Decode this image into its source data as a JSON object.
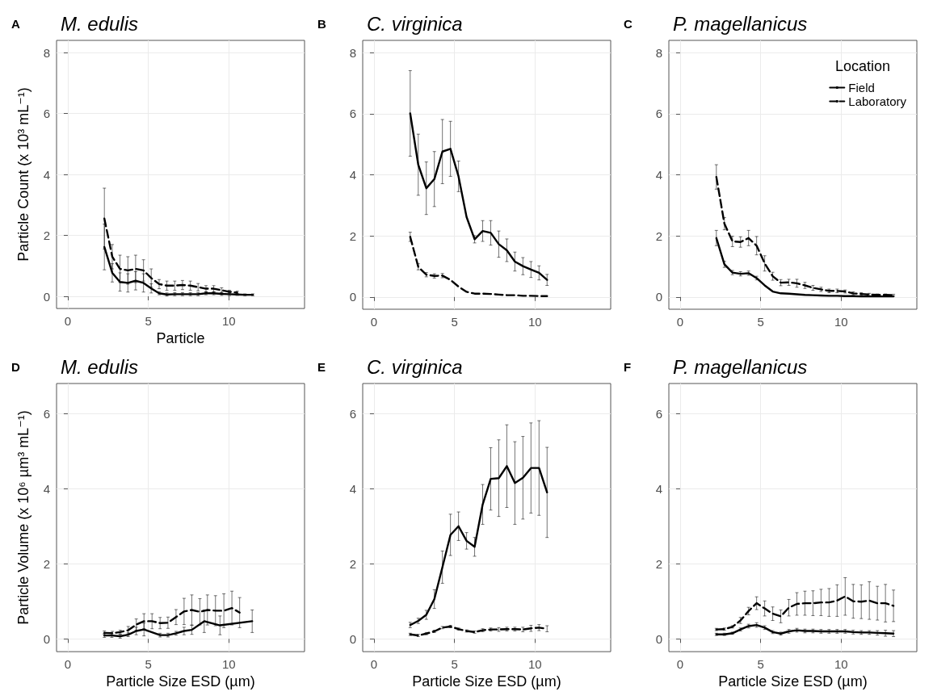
{
  "chart_data": [
    {
      "type": "line",
      "title": "M. edulis",
      "annotations": [
        "A"
      ],
      "xlabel": "Particle",
      "ylabel": "Particle Count (x 10³ mL⁻¹)",
      "xlim": [
        -0.7,
        14.7
      ],
      "xticks": [
        0,
        5,
        10
      ],
      "ylim": [
        -0.4,
        8.4
      ],
      "yticks": [
        0,
        2,
        4,
        6,
        8
      ],
      "grid": true,
      "series": [
        {
          "color": "#000000",
          "line_style": "solid",
          "x": [
            2.27,
            2.76,
            3.24,
            3.73,
            4.21,
            4.7,
            5.18,
            5.67,
            6.15,
            6.64,
            7.12,
            7.61,
            8.09,
            8.58,
            9.06,
            9.55,
            10.03,
            10.52,
            11.0,
            11.49
          ],
          "values": [
            1.62,
            0.77,
            0.47,
            0.44,
            0.51,
            0.44,
            0.26,
            0.1,
            0.06,
            0.07,
            0.07,
            0.07,
            0.07,
            0.1,
            0.1,
            0.08,
            0.07,
            0.06,
            0.05,
            0.05
          ],
          "errors": [
            0.75,
            0.3,
            0.3,
            0.3,
            0.3,
            0.3,
            0.15,
            0.05,
            0.05,
            0.05,
            0.05,
            0.05,
            0.05,
            0.05,
            0.05,
            0.05,
            0.05,
            0.03,
            0.03,
            0.03
          ]
        },
        {
          "color": "#000000",
          "line_style": "dashed",
          "x": [
            2.27,
            2.76,
            3.24,
            3.73,
            4.21,
            4.7,
            5.18,
            5.67,
            6.15,
            6.64,
            7.12,
            7.61,
            8.09,
            8.58,
            9.06,
            9.55,
            10.03,
            10.52
          ],
          "values": [
            2.55,
            1.3,
            0.9,
            0.85,
            0.9,
            0.85,
            0.6,
            0.4,
            0.35,
            0.35,
            0.37,
            0.35,
            0.3,
            0.25,
            0.25,
            0.2,
            0.15,
            0.12
          ],
          "errors": [
            1.0,
            0.4,
            0.45,
            0.45,
            0.45,
            0.35,
            0.3,
            0.15,
            0.15,
            0.15,
            0.15,
            0.15,
            0.12,
            0.1,
            0.1,
            0.08,
            0.05,
            0.05
          ]
        }
      ]
    },
    {
      "type": "line",
      "title": "C. virginica",
      "annotations": [
        "B"
      ],
      "xlim": [
        -0.7,
        14.7
      ],
      "xticks": [
        0,
        5,
        10
      ],
      "ylim": [
        -0.4,
        8.4
      ],
      "yticks": [
        0,
        2,
        4,
        6,
        8
      ],
      "grid": true,
      "series": [
        {
          "color": "#000000",
          "line_style": "solid",
          "x": [
            2.25,
            2.75,
            3.25,
            3.75,
            4.25,
            4.75,
            5.25,
            5.75,
            6.25,
            6.75,
            7.25,
            7.75,
            8.25,
            8.75,
            9.25,
            9.75,
            10.25,
            10.75
          ],
          "values": [
            6.01,
            4.33,
            3.56,
            3.86,
            4.76,
            4.85,
            3.95,
            2.62,
            1.89,
            2.16,
            2.1,
            1.73,
            1.53,
            1.16,
            1.01,
            0.9,
            0.79,
            0.56
          ],
          "errors": [
            1.4,
            1.0,
            0.86,
            0.9,
            1.05,
            0.9,
            0.5,
            null,
            0.12,
            0.34,
            0.4,
            0.43,
            0.37,
            0.31,
            0.28,
            0.26,
            0.23,
            0.18
          ]
        },
        {
          "color": "#000000",
          "line_style": "dashed",
          "x": [
            2.25,
            2.75,
            3.25,
            3.75,
            4.25,
            4.75,
            5.25,
            5.75,
            6.25,
            6.75,
            7.25,
            7.75,
            8.25,
            8.75,
            9.25,
            9.75,
            10.25,
            10.75
          ],
          "values": [
            1.97,
            0.99,
            0.73,
            0.69,
            0.7,
            0.56,
            0.34,
            0.17,
            0.11,
            0.11,
            0.1,
            0.08,
            0.06,
            0.06,
            0.04,
            0.04,
            0.03,
            0.03
          ],
          "errors": [
            0.15,
            0.1,
            0.07,
            0.07,
            0.07,
            null,
            null,
            null,
            null,
            null,
            null,
            null,
            null,
            null,
            null,
            null,
            null,
            null
          ]
        }
      ]
    },
    {
      "type": "line",
      "title": "P. magellanicus",
      "annotations": [
        "C"
      ],
      "xlim": [
        -0.7,
        14.7
      ],
      "xticks": [
        0,
        5,
        10
      ],
      "ylim": [
        -0.4,
        8.4
      ],
      "yticks": [
        0,
        2,
        4,
        6,
        8
      ],
      "grid": true,
      "legend": "top right",
      "legend_title": "Location",
      "series": [
        {
          "name": "Field",
          "color": "#000000",
          "line_style": "solid",
          "x": [
            2.25,
            2.75,
            3.25,
            3.75,
            4.25,
            4.75,
            5.25,
            5.75,
            6.25,
            6.75,
            7.25,
            7.75,
            8.25,
            8.75,
            9.25,
            9.75,
            10.25,
            10.75,
            11.25,
            11.75,
            12.25,
            12.75,
            13.25
          ],
          "values": [
            1.93,
            1.07,
            0.8,
            0.76,
            0.78,
            0.62,
            0.38,
            0.18,
            0.12,
            0.11,
            0.09,
            0.07,
            0.06,
            0.05,
            0.04,
            0.04,
            0.03,
            0.03,
            0.02,
            0.02,
            0.02,
            0.02,
            0.02
          ],
          "errors": [
            0.25,
            0.1,
            0.07,
            0.07,
            0.07,
            0.06,
            null,
            null,
            null,
            null,
            null,
            null,
            null,
            null,
            null,
            null,
            null,
            null,
            null,
            null,
            null,
            null,
            null
          ]
        },
        {
          "name": "Laboratory",
          "color": "#000000",
          "line_style": "dashed",
          "x": [
            2.25,
            2.75,
            3.25,
            3.75,
            4.25,
            4.75,
            5.25,
            5.75,
            6.25,
            6.75,
            7.25,
            7.75,
            8.25,
            8.75,
            9.25,
            9.75,
            10.25,
            10.75,
            11.25,
            11.75,
            12.25,
            12.75,
            13.25
          ],
          "values": [
            3.93,
            2.4,
            1.82,
            1.8,
            1.93,
            1.68,
            1.1,
            0.68,
            0.47,
            0.48,
            0.45,
            0.38,
            0.3,
            0.25,
            0.2,
            0.2,
            0.18,
            0.12,
            0.1,
            0.08,
            0.07,
            0.07,
            0.06
          ],
          "errors": [
            0.4,
            0.2,
            0.17,
            0.17,
            0.25,
            0.3,
            0.25,
            0.13,
            0.1,
            0.1,
            0.13,
            0.1,
            0.08,
            0.07,
            0.06,
            0.06,
            0.05,
            0.05,
            0.04,
            0.04,
            0.03,
            0.03,
            0.03
          ]
        }
      ]
    },
    {
      "type": "line",
      "title": "M. edulis",
      "annotations": [
        "D"
      ],
      "xlabel": "Particle Size ESD (µm)",
      "ylabel": "Particle Volume (x 10⁶ µm³ mL⁻¹)",
      "xlim": [
        -0.7,
        14.7
      ],
      "xticks": [
        0,
        5,
        10
      ],
      "ylim": [
        -0.34,
        6.8
      ],
      "yticks": [
        0,
        2,
        4,
        6
      ],
      "grid": true,
      "series": [
        {
          "color": "#000000",
          "line_style": "solid",
          "x": [
            2.27,
            2.73,
            3.25,
            3.75,
            4.25,
            4.73,
            5.73,
            6.22,
            6.72,
            7.22,
            7.7,
            8.47,
            9.45,
            11.45
          ],
          "values": [
            0.09,
            0.09,
            0.07,
            0.11,
            0.21,
            0.25,
            0.1,
            0.1,
            0.15,
            0.21,
            0.24,
            0.47,
            0.36,
            0.47
          ],
          "errors": [
            0.05,
            0.05,
            0.05,
            0.05,
            0.1,
            0.17,
            0.05,
            0.05,
            0.05,
            0.1,
            0.12,
            0.3,
            0.25,
            0.3
          ]
        },
        {
          "color": "#000000",
          "line_style": "dashed",
          "x": [
            2.27,
            2.77,
            3.25,
            3.75,
            4.25,
            4.73,
            5.23,
            5.73,
            6.22,
            6.72,
            7.22,
            7.7,
            8.2,
            8.67,
            9.17,
            9.69,
            10.19,
            10.67
          ],
          "values": [
            0.16,
            0.15,
            0.18,
            0.23,
            0.38,
            0.47,
            0.47,
            0.42,
            0.43,
            0.58,
            0.73,
            0.77,
            0.72,
            0.77,
            0.75,
            0.75,
            0.82,
            0.7
          ],
          "errors": [
            0.05,
            0.05,
            0.05,
            0.1,
            0.15,
            0.2,
            0.2,
            0.15,
            0.15,
            0.2,
            0.35,
            0.4,
            0.35,
            0.4,
            0.4,
            0.45,
            0.45,
            0.4
          ]
        }
      ]
    },
    {
      "type": "line",
      "title": "C. virginica",
      "annotations": [
        "E"
      ],
      "xlabel": "Particle Size ESD (µm)",
      "xlim": [
        -0.7,
        14.7
      ],
      "xticks": [
        0,
        5,
        10
      ],
      "ylim": [
        -0.34,
        6.8
      ],
      "yticks": [
        0,
        2,
        4,
        6
      ],
      "grid": true,
      "series": [
        {
          "color": "#000000",
          "line_style": "solid",
          "x": [
            2.25,
            2.75,
            3.25,
            3.75,
            4.25,
            4.75,
            5.25,
            5.75,
            6.25,
            6.75,
            7.25,
            7.75,
            8.25,
            8.75,
            9.25,
            9.75,
            10.25,
            10.75
          ],
          "values": [
            0.37,
            0.48,
            0.64,
            1.06,
            1.91,
            2.77,
            3.0,
            2.61,
            2.45,
            3.58,
            4.26,
            4.28,
            4.6,
            4.15,
            4.29,
            4.55,
            4.55,
            3.9
          ],
          "errors": [
            0.07,
            0.07,
            0.12,
            0.25,
            0.43,
            0.55,
            0.38,
            0.22,
            0.25,
            0.53,
            0.83,
            1.02,
            1.1,
            1.1,
            1.1,
            1.2,
            1.26,
            1.2
          ]
        },
        {
          "color": "#000000",
          "line_style": "dashed",
          "x": [
            2.25,
            2.75,
            3.25,
            3.75,
            4.25,
            4.75,
            5.25,
            5.75,
            6.25,
            6.75,
            7.25,
            7.75,
            8.25,
            8.75,
            9.25,
            9.75,
            10.25,
            10.75
          ],
          "values": [
            0.12,
            0.09,
            0.14,
            0.2,
            0.3,
            0.33,
            0.26,
            0.21,
            0.18,
            0.23,
            0.25,
            0.25,
            0.26,
            0.26,
            0.25,
            0.28,
            0.3,
            0.27
          ],
          "errors": [
            0.03,
            0.03,
            0.03,
            0.03,
            0.03,
            0.03,
            0.03,
            0.03,
            0.03,
            0.04,
            0.04,
            0.05,
            0.05,
            0.05,
            0.06,
            0.08,
            0.08,
            0.08
          ]
        }
      ]
    },
    {
      "type": "line",
      "title": "P. magellanicus",
      "annotations": [
        "F"
      ],
      "xlabel": "Particle Size ESD (µm)",
      "xlim": [
        -0.7,
        14.7
      ],
      "xticks": [
        0,
        5,
        10
      ],
      "ylim": [
        -0.34,
        6.8
      ],
      "yticks": [
        0,
        2,
        4,
        6
      ],
      "grid": true,
      "series": [
        {
          "color": "#000000",
          "line_style": "solid",
          "x": [
            2.25,
            2.75,
            3.25,
            3.75,
            4.25,
            4.75,
            5.25,
            5.75,
            6.25,
            6.75,
            7.25,
            7.75,
            8.25,
            8.75,
            9.25,
            9.75,
            10.25,
            10.75,
            11.25,
            11.75,
            12.25,
            12.75,
            13.25
          ],
          "values": [
            0.12,
            0.12,
            0.15,
            0.25,
            0.34,
            0.37,
            0.3,
            0.18,
            0.14,
            0.2,
            0.23,
            0.21,
            0.21,
            0.2,
            0.2,
            0.2,
            0.2,
            0.18,
            0.17,
            0.17,
            0.16,
            0.15,
            0.14
          ],
          "errors": [
            0.03,
            0.03,
            0.03,
            0.04,
            0.05,
            0.06,
            0.05,
            0.04,
            0.04,
            0.05,
            0.05,
            0.05,
            0.05,
            0.05,
            0.05,
            0.05,
            0.05,
            0.05,
            0.05,
            0.05,
            0.06,
            0.08,
            0.08
          ]
        },
        {
          "color": "#000000",
          "line_style": "dashed",
          "x": [
            2.25,
            2.75,
            3.25,
            3.75,
            4.25,
            4.75,
            5.25,
            5.75,
            6.25,
            6.75,
            7.25,
            7.75,
            8.25,
            8.75,
            9.25,
            9.75,
            10.25,
            10.75,
            11.25,
            11.75,
            12.25,
            12.75,
            13.25
          ],
          "values": [
            0.25,
            0.26,
            0.32,
            0.49,
            0.74,
            0.95,
            0.81,
            0.67,
            0.6,
            0.83,
            0.93,
            0.95,
            0.95,
            0.97,
            0.97,
            1.02,
            1.13,
            1.0,
            0.99,
            1.02,
            0.95,
            0.95,
            0.88
          ],
          "errors": [
            0.03,
            0.03,
            0.03,
            0.08,
            0.1,
            0.17,
            0.2,
            0.18,
            0.17,
            0.22,
            0.3,
            0.32,
            0.33,
            0.35,
            0.37,
            0.42,
            0.5,
            0.45,
            0.45,
            0.5,
            0.45,
            0.5,
            0.42
          ]
        }
      ]
    }
  ]
}
